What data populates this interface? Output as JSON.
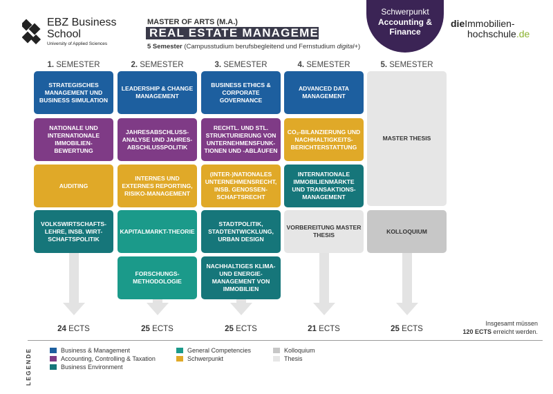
{
  "header": {
    "school_name_line1": "EBZ Business",
    "school_name_line2": "School",
    "school_subtitle": "University of Applied Sciences",
    "degree_label": "MASTER OF ARTS (M.A.)",
    "program_title": "REAL ESTATE MANAGEMENT",
    "semester_info_bold": "5 Semester",
    "semester_info_rest": " (Campusstudium berufsbegleitend und Fernstudium ",
    "semester_info_italic": "digital+",
    "semester_info_end": ")",
    "focus_line1": "Schwerpunkt",
    "focus_line2a": "Accounting &",
    "focus_line2b": "Finance",
    "brand_part1": "die",
    "brand_part2": "Immobilien-",
    "brand_part3": "hochschule",
    "brand_part4": ".de"
  },
  "colors": {
    "business_management": "#1d5f9f",
    "accounting": "#7f3b86",
    "business_environment": "#16767a",
    "general_competencies": "#1b9a8a",
    "focus": "#e0a928",
    "colloquium": "#c7c7c7",
    "thesis": "#e6e6e6",
    "focus_circle": "#3b2455",
    "brand_accent": "#8bb22f"
  },
  "semesters": [
    {
      "number": "1.",
      "label": "SEMESTER",
      "ects_value": "24",
      "ects_unit": "ECTS",
      "modules": [
        {
          "text": "STRATEGISCHES MANAGEMENT UND BUSINESS SIMULATION",
          "category": "business_management"
        },
        {
          "text": "NATIONALE UND INTERNATIONALE IMMOBILIEN-BEWERTUNG",
          "category": "accounting"
        },
        {
          "text": "AUDITING",
          "category": "focus"
        },
        {
          "text": "VOLKSWIRTSCHAFTS-LEHRE, INSB. WIRT-SCHAFTSPOLITIK",
          "category": "business_environment"
        }
      ]
    },
    {
      "number": "2.",
      "label": "SEMESTER",
      "ects_value": "25",
      "ects_unit": "ECTS",
      "modules": [
        {
          "text": "LEADERSHIP & CHANGE MANAGEMENT",
          "category": "business_management"
        },
        {
          "text": "JAHRESABSCHLUSS-ANALYSE UND JAHRES-ABSCHLUSSPOLITIK",
          "category": "accounting"
        },
        {
          "text": "INTERNES UND EXTERNES REPORTING, RISIKO-MANAGEMENT",
          "category": "focus"
        },
        {
          "text": "KAPITALMARKT-THEORIE",
          "category": "general_competencies"
        },
        {
          "text": "FORSCHUNGS-METHODOLOGIE",
          "category": "general_competencies"
        }
      ]
    },
    {
      "number": "3.",
      "label": "SEMESTER",
      "ects_value": "25",
      "ects_unit": "ECTS",
      "modules": [
        {
          "text": "BUSINESS ETHICS & CORPORATE GOVERNANCE",
          "category": "business_management"
        },
        {
          "text": "RECHTL. UND STL. STRUKTURIERUNG VON UNTERNEHMENSFUNK-TIONEN UND -ABLÄUFEN",
          "category": "accounting"
        },
        {
          "text": "(INTER-)NATIONALES UNTERNEHMENSRECHT, INSB. GENOSSEN-SCHAFTSRECHT",
          "category": "focus"
        },
        {
          "text": "STADTPOLITIK, STADTENTWICKLUNG, URBAN DESIGN",
          "category": "business_environment"
        },
        {
          "text": "NACHHALTIGES KLIMA- UND ENERGIE-MANAGEMENT VON IMMOBILIEN",
          "category": "business_environment"
        }
      ]
    },
    {
      "number": "4.",
      "label": "SEMESTER",
      "ects_value": "21",
      "ects_unit": "ECTS",
      "modules": [
        {
          "text": "ADVANCED DATA MANAGEMENT",
          "category": "business_management"
        },
        {
          "text": "CO₂-BILANZIERUNG UND NACHHALTIGKEITS-BERICHTERSTATTUNG",
          "category": "focus"
        },
        {
          "text": "INTERNATIONALE IMMOBILIENMÄRKTE UND TRANSAKTIONS-MANAGEMENT",
          "category": "business_environment"
        },
        {
          "text": "VORBEREITUNG MASTER THESIS",
          "category": "thesis"
        }
      ]
    },
    {
      "number": "5.",
      "label": "SEMESTER",
      "ects_value": "25",
      "ects_unit": "ECTS",
      "modules": [
        {
          "text": "MASTER THESIS",
          "category": "thesis"
        },
        {
          "text": "KOLLOQUIUM",
          "category": "colloquium"
        }
      ]
    }
  ],
  "total": {
    "line1": "Insgesamt müssen",
    "line2_bold": "120 ECTS",
    "line2_rest": " erreicht werden."
  },
  "legend": {
    "title": "LEGENDE",
    "items": [
      {
        "label": "Business & Management",
        "category": "business_management"
      },
      {
        "label": "Accounting, Controlling & Taxation",
        "category": "accounting"
      },
      {
        "label": "Business Environment",
        "category": "business_environment"
      },
      {
        "label": "General Competencies",
        "category": "general_competencies"
      },
      {
        "label": "Schwerpunkt",
        "category": "focus"
      },
      {
        "label": "Kolloquium",
        "category": "colloquium"
      },
      {
        "label": "Thesis",
        "category": "thesis"
      }
    ]
  }
}
